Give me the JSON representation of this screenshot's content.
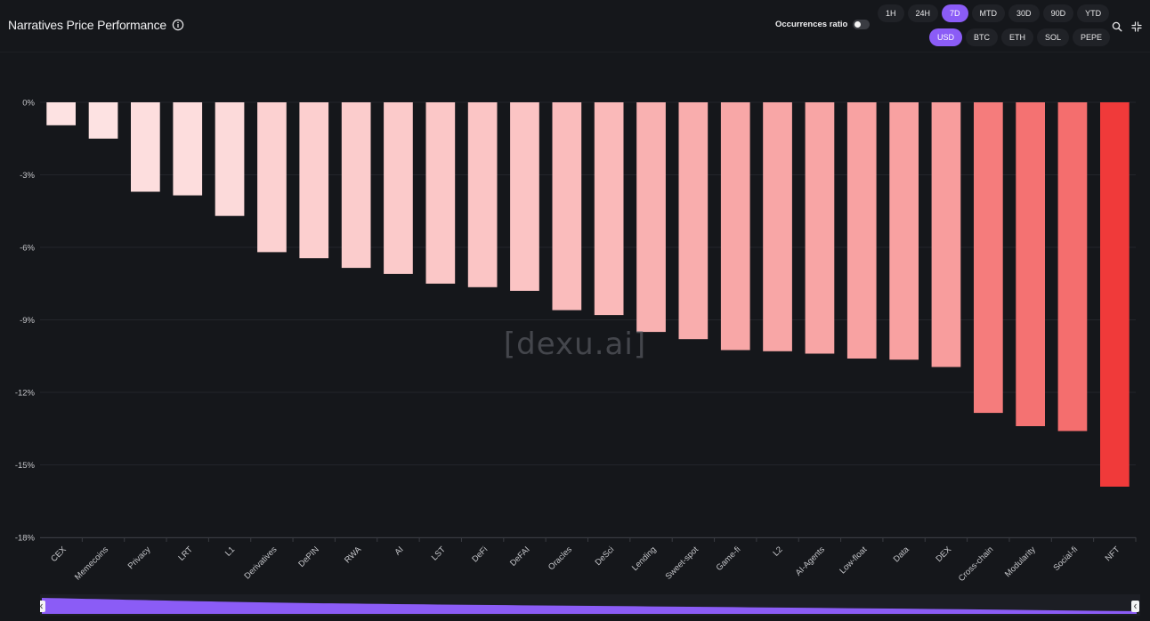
{
  "header": {
    "title": "Narratives Price Performance",
    "info_icon": "info-circle-icon"
  },
  "occurrences": {
    "label": "Occurrences ratio",
    "enabled": false
  },
  "timeframes": [
    {
      "label": "1H",
      "active": false
    },
    {
      "label": "24H",
      "active": false
    },
    {
      "label": "7D",
      "active": true
    },
    {
      "label": "MTD",
      "active": false
    },
    {
      "label": "30D",
      "active": false
    },
    {
      "label": "90D",
      "active": false
    },
    {
      "label": "YTD",
      "active": false
    }
  ],
  "currencies": [
    {
      "label": "USD",
      "active": true
    },
    {
      "label": "BTC",
      "active": false
    },
    {
      "label": "ETH",
      "active": false
    },
    {
      "label": "SOL",
      "active": false
    },
    {
      "label": "PEPE",
      "active": false
    }
  ],
  "tools": {
    "search_icon": "search-icon",
    "collapse_icon": "collapse-icon"
  },
  "watermark": "[dexu.ai]",
  "colors": {
    "accent": "#8b5cf6",
    "background": "#15171b",
    "bar_light": "#fde2e2",
    "bar_dark": "#f03a3a"
  },
  "chart_data": {
    "type": "bar",
    "title": "Narratives Price Performance",
    "xlabel": "",
    "ylabel": "",
    "ylim": [
      -18,
      0
    ],
    "yticks": [
      "0%",
      "-3%",
      "-6%",
      "-9%",
      "-12%",
      "-15%",
      "-18%"
    ],
    "categories": [
      "CEX",
      "Memecoins",
      "Privacy",
      "LRT",
      "L1",
      "Derivatives",
      "DePIN",
      "RWA",
      "AI",
      "LST",
      "DeFi",
      "DeFAI",
      "Oracles",
      "DeSci",
      "Lending",
      "Sweet-spot",
      "Game-fi",
      "L2",
      "AI-Agents",
      "Low-float",
      "Data",
      "DEX",
      "Cross-chain",
      "Modularity",
      "Social-fi",
      "NFT"
    ],
    "values": [
      -0.95,
      -1.5,
      -3.7,
      -3.85,
      -4.7,
      -6.2,
      -6.45,
      -6.85,
      -7.1,
      -7.5,
      -7.65,
      -7.8,
      -8.6,
      -8.8,
      -9.5,
      -9.8,
      -10.25,
      -10.3,
      -10.4,
      -10.6,
      -10.65,
      -10.95,
      -12.85,
      -13.4,
      -13.6,
      -15.9
    ]
  }
}
